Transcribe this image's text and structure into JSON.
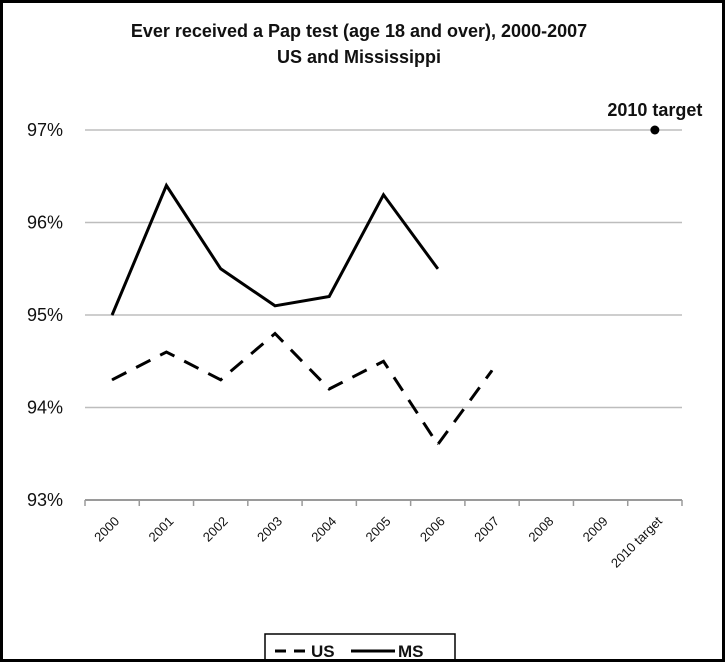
{
  "chart_data": {
    "type": "line",
    "title": "Ever received a Pap test (age 18 and over), 2000-2007",
    "subtitle": "US and Mississippi",
    "categories": [
      "2000",
      "2001",
      "2002",
      "2003",
      "2004",
      "2005",
      "2006",
      "2007",
      "2008",
      "2009",
      "2010 target"
    ],
    "series": [
      {
        "name": "US",
        "style": "dashed",
        "color": "#000000",
        "values": [
          94.3,
          94.6,
          94.3,
          94.8,
          94.2,
          94.5,
          93.6,
          94.4,
          null,
          null,
          null
        ]
      },
      {
        "name": "MS",
        "style": "solid",
        "color": "#000000",
        "values": [
          95.0,
          96.4,
          95.5,
          95.1,
          95.2,
          96.3,
          95.5,
          null,
          null,
          null,
          null
        ]
      }
    ],
    "target": {
      "label": "2010 target",
      "category": "2010 target",
      "value": 97
    },
    "ylim": [
      93,
      97
    ],
    "yticks": [
      {
        "value": 93,
        "label": "93%"
      },
      {
        "value": 94,
        "label": "94%"
      },
      {
        "value": 95,
        "label": "95%"
      },
      {
        "value": 96,
        "label": "96%"
      },
      {
        "value": 97,
        "label": "97%"
      }
    ],
    "xlabel": "",
    "ylabel": "",
    "grid": true,
    "legend_position": "bottom"
  }
}
